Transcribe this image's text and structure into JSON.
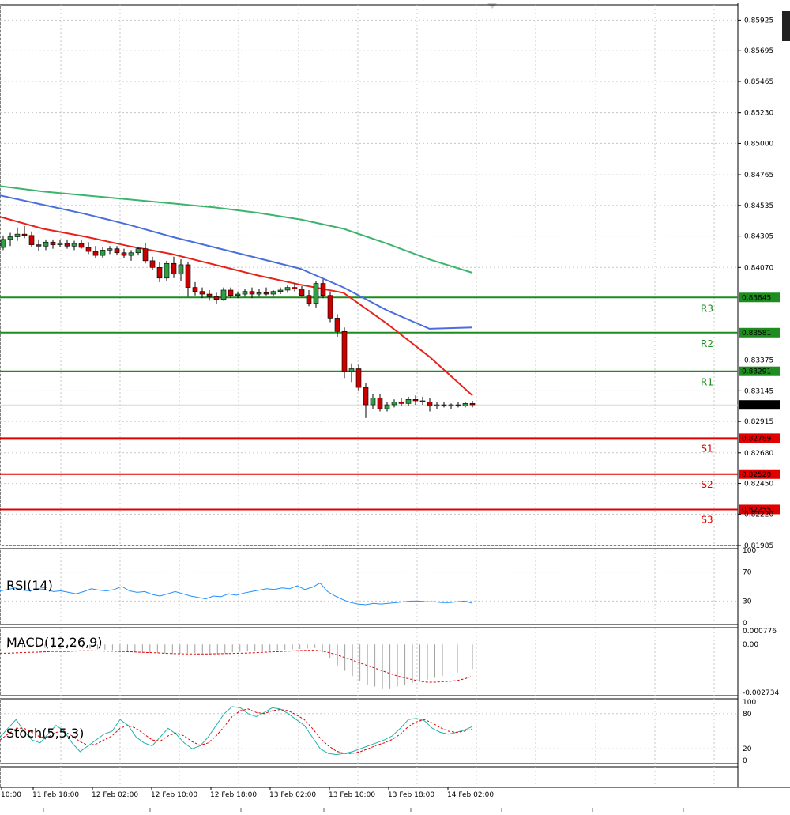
{
  "colors": {
    "background": "#ffffff",
    "grid": "#c8c8c8",
    "frame": "#000000",
    "bull": "#2f9e44",
    "bear": "#c80000",
    "resistance": "#1e8c1e",
    "support": "#e00000",
    "ma_fast": "#e8221a",
    "ma_mid": "#4a6fdc",
    "ma_slow": "#3cb46e",
    "rsi": "#1e90ff",
    "macd_hist": "#a0a0a0",
    "macd_signal": "#e00000",
    "stoch_main": "#20b2aa",
    "stoch_signal": "#e00000",
    "current_price_box": "#000000"
  },
  "chart_data": {
    "type": "candlestick",
    "x_labels": [
      "10:00",
      "11 Feb 18:00",
      "12 Feb 02:00",
      "12 Feb 10:00",
      "12 Feb 18:00",
      "13 Feb 02:00",
      "13 Feb 10:00",
      "13 Feb 18:00",
      "14 Feb 02:00"
    ],
    "price_axis": {
      "ylim": [
        0.81985,
        0.8604
      ],
      "ticks": [
        "0.85925",
        "0.85695",
        "0.85465",
        "0.85230",
        "0.85000",
        "0.84765",
        "0.84535",
        "0.84305",
        "0.84070",
        "0.83375",
        "0.83145",
        "0.82915",
        "0.82680",
        "0.82450",
        "0.82220",
        "0.81985"
      ]
    },
    "current_price": "0.83039",
    "levels": [
      {
        "name": "R3",
        "value": "0.83845",
        "kind": "resistance"
      },
      {
        "name": "R2",
        "value": "0.83581",
        "kind": "resistance"
      },
      {
        "name": "R1",
        "value": "0.83291",
        "kind": "resistance"
      },
      {
        "name": "S1",
        "value": "0.82789",
        "kind": "support"
      },
      {
        "name": "S2",
        "value": "0.82520",
        "kind": "support"
      },
      {
        "name": "S3",
        "value": "0.82255",
        "kind": "support"
      }
    ],
    "candles": [
      {
        "o": 0.8422,
        "h": 0.8431,
        "l": 0.842,
        "c": 0.8428
      },
      {
        "o": 0.8428,
        "h": 0.8433,
        "l": 0.8423,
        "c": 0.843
      },
      {
        "o": 0.843,
        "h": 0.8437,
        "l": 0.8427,
        "c": 0.8432
      },
      {
        "o": 0.8432,
        "h": 0.8438,
        "l": 0.8429,
        "c": 0.8431
      },
      {
        "o": 0.8431,
        "h": 0.8434,
        "l": 0.8422,
        "c": 0.8424
      },
      {
        "o": 0.8424,
        "h": 0.8428,
        "l": 0.8419,
        "c": 0.8423
      },
      {
        "o": 0.8423,
        "h": 0.8428,
        "l": 0.842,
        "c": 0.8426
      },
      {
        "o": 0.8426,
        "h": 0.8428,
        "l": 0.8421,
        "c": 0.8424
      },
      {
        "o": 0.8424,
        "h": 0.8428,
        "l": 0.8422,
        "c": 0.8425
      },
      {
        "o": 0.8425,
        "h": 0.8428,
        "l": 0.8421,
        "c": 0.8423
      },
      {
        "o": 0.8423,
        "h": 0.8427,
        "l": 0.842,
        "c": 0.8425
      },
      {
        "o": 0.8425,
        "h": 0.8428,
        "l": 0.8421,
        "c": 0.8422
      },
      {
        "o": 0.8422,
        "h": 0.8426,
        "l": 0.8417,
        "c": 0.8419
      },
      {
        "o": 0.8419,
        "h": 0.8423,
        "l": 0.8414,
        "c": 0.8416
      },
      {
        "o": 0.8416,
        "h": 0.8422,
        "l": 0.8414,
        "c": 0.842
      },
      {
        "o": 0.842,
        "h": 0.8423,
        "l": 0.8417,
        "c": 0.8421
      },
      {
        "o": 0.8421,
        "h": 0.8423,
        "l": 0.8416,
        "c": 0.8418
      },
      {
        "o": 0.8418,
        "h": 0.8421,
        "l": 0.8414,
        "c": 0.8416
      },
      {
        "o": 0.8416,
        "h": 0.842,
        "l": 0.8412,
        "c": 0.8418
      },
      {
        "o": 0.8418,
        "h": 0.8422,
        "l": 0.8416,
        "c": 0.8421
      },
      {
        "o": 0.8421,
        "h": 0.8425,
        "l": 0.841,
        "c": 0.8412
      },
      {
        "o": 0.8412,
        "h": 0.8415,
        "l": 0.8405,
        "c": 0.8407
      },
      {
        "o": 0.8407,
        "h": 0.8411,
        "l": 0.8396,
        "c": 0.8399
      },
      {
        "o": 0.8399,
        "h": 0.8412,
        "l": 0.8397,
        "c": 0.841
      },
      {
        "o": 0.841,
        "h": 0.8415,
        "l": 0.8399,
        "c": 0.8402
      },
      {
        "o": 0.8402,
        "h": 0.8413,
        "l": 0.8397,
        "c": 0.8409
      },
      {
        "o": 0.8409,
        "h": 0.8411,
        "l": 0.8385,
        "c": 0.8392
      },
      {
        "o": 0.8392,
        "h": 0.8396,
        "l": 0.8386,
        "c": 0.8389
      },
      {
        "o": 0.8389,
        "h": 0.8392,
        "l": 0.8384,
        "c": 0.8387
      },
      {
        "o": 0.8387,
        "h": 0.839,
        "l": 0.8382,
        "c": 0.8385
      },
      {
        "o": 0.8385,
        "h": 0.8388,
        "l": 0.838,
        "c": 0.8383
      },
      {
        "o": 0.8383,
        "h": 0.8392,
        "l": 0.8382,
        "c": 0.839
      },
      {
        "o": 0.839,
        "h": 0.8392,
        "l": 0.8384,
        "c": 0.8386
      },
      {
        "o": 0.8386,
        "h": 0.8389,
        "l": 0.8384,
        "c": 0.8387
      },
      {
        "o": 0.8387,
        "h": 0.8391,
        "l": 0.8385,
        "c": 0.8389
      },
      {
        "o": 0.8389,
        "h": 0.8392,
        "l": 0.8384,
        "c": 0.8387
      },
      {
        "o": 0.8387,
        "h": 0.8391,
        "l": 0.8385,
        "c": 0.8388
      },
      {
        "o": 0.8388,
        "h": 0.8392,
        "l": 0.8386,
        "c": 0.8387
      },
      {
        "o": 0.8387,
        "h": 0.839,
        "l": 0.8385,
        "c": 0.8389
      },
      {
        "o": 0.8389,
        "h": 0.8392,
        "l": 0.8387,
        "c": 0.839
      },
      {
        "o": 0.839,
        "h": 0.8394,
        "l": 0.8388,
        "c": 0.8392
      },
      {
        "o": 0.8392,
        "h": 0.8395,
        "l": 0.8389,
        "c": 0.8391
      },
      {
        "o": 0.8391,
        "h": 0.8393,
        "l": 0.8385,
        "c": 0.8386
      },
      {
        "o": 0.8386,
        "h": 0.839,
        "l": 0.8378,
        "c": 0.838
      },
      {
        "o": 0.838,
        "h": 0.8397,
        "l": 0.8377,
        "c": 0.8395
      },
      {
        "o": 0.8395,
        "h": 0.8398,
        "l": 0.8384,
        "c": 0.8386
      },
      {
        "o": 0.8386,
        "h": 0.8389,
        "l": 0.8366,
        "c": 0.8369
      },
      {
        "o": 0.8369,
        "h": 0.8372,
        "l": 0.8355,
        "c": 0.8359
      },
      {
        "o": 0.8359,
        "h": 0.8362,
        "l": 0.8324,
        "c": 0.8329
      },
      {
        "o": 0.8329,
        "h": 0.8335,
        "l": 0.8321,
        "c": 0.8331
      },
      {
        "o": 0.8331,
        "h": 0.8334,
        "l": 0.8314,
        "c": 0.8317
      },
      {
        "o": 0.8317,
        "h": 0.832,
        "l": 0.8294,
        "c": 0.8304
      },
      {
        "o": 0.8304,
        "h": 0.8312,
        "l": 0.8301,
        "c": 0.8309
      },
      {
        "o": 0.8309,
        "h": 0.8312,
        "l": 0.8299,
        "c": 0.8301
      },
      {
        "o": 0.8301,
        "h": 0.8306,
        "l": 0.8299,
        "c": 0.8304
      },
      {
        "o": 0.8304,
        "h": 0.8308,
        "l": 0.8302,
        "c": 0.8306
      },
      {
        "o": 0.8306,
        "h": 0.8309,
        "l": 0.8303,
        "c": 0.8305
      },
      {
        "o": 0.8305,
        "h": 0.831,
        "l": 0.8303,
        "c": 0.8308
      },
      {
        "o": 0.8308,
        "h": 0.8311,
        "l": 0.8304,
        "c": 0.8307
      },
      {
        "o": 0.8307,
        "h": 0.831,
        "l": 0.8304,
        "c": 0.8306
      },
      {
        "o": 0.8306,
        "h": 0.8309,
        "l": 0.8299,
        "c": 0.8303
      },
      {
        "o": 0.8303,
        "h": 0.8306,
        "l": 0.8301,
        "c": 0.8304
      },
      {
        "o": 0.8304,
        "h": 0.8306,
        "l": 0.8302,
        "c": 0.8303
      },
      {
        "o": 0.8303,
        "h": 0.8305,
        "l": 0.8301,
        "c": 0.8304
      },
      {
        "o": 0.8304,
        "h": 0.8306,
        "l": 0.8302,
        "c": 0.8303
      },
      {
        "o": 0.8303,
        "h": 0.8306,
        "l": 0.8302,
        "c": 0.8305
      },
      {
        "o": 0.8305,
        "h": 0.8307,
        "l": 0.8302,
        "c": 0.8304
      }
    ],
    "moving_averages": [
      {
        "color_key": "ma_slow",
        "values": [
          0.8468,
          0.8464,
          0.8461,
          0.8458,
          0.8455,
          0.8452,
          0.8448,
          0.8443,
          0.8436,
          0.8425,
          0.8413,
          0.8403
        ]
      },
      {
        "color_key": "ma_mid",
        "values": [
          0.8461,
          0.8454,
          0.8447,
          0.8439,
          0.843,
          0.8422,
          0.8414,
          0.8406,
          0.8392,
          0.8375,
          0.8361,
          0.8362
        ]
      },
      {
        "color_key": "ma_fast",
        "values": [
          0.8445,
          0.8436,
          0.843,
          0.8423,
          0.8417,
          0.8409,
          0.8401,
          0.8394,
          0.8388,
          0.8365,
          0.834,
          0.8311
        ]
      }
    ],
    "rsi": {
      "title": "RSI(14)",
      "ticks": [
        "100",
        "70",
        "30",
        "0"
      ],
      "ylim": [
        0,
        100
      ],
      "levels": [
        70,
        30
      ],
      "values": [
        44,
        46,
        48,
        45,
        44,
        47,
        46,
        43,
        44,
        42,
        40,
        43,
        47,
        45,
        44,
        46,
        50,
        44,
        42,
        43,
        39,
        37,
        40,
        43,
        40,
        37,
        35,
        33,
        37,
        36,
        40,
        38,
        41,
        43,
        45,
        47,
        46,
        48,
        47,
        51,
        46,
        49,
        55,
        43,
        37,
        32,
        28,
        26,
        25,
        27,
        26,
        27,
        28,
        29,
        30,
        30,
        29,
        29,
        28,
        28,
        29,
        30,
        27
      ]
    },
    "macd": {
      "title": "MACD(12,26,9)",
      "ticks": [
        "0.000776",
        "0.00",
        "-0.002734"
      ],
      "ylim": [
        -0.002734,
        0.000776
      ],
      "hist": [
        -0.00025,
        -0.00022,
        -0.0002,
        -0.00018,
        -0.00015,
        -0.00018,
        -0.0002,
        -0.00022,
        -0.00025,
        -0.00023,
        -0.0002,
        -0.00022,
        -0.00025,
        -0.00028,
        -0.0003,
        -0.00032,
        -0.00035,
        -0.0004,
        -0.00042,
        -0.00045,
        -0.00048,
        -0.0005,
        -0.00052,
        -0.00055,
        -0.00052,
        -0.0005,
        -0.00048,
        -0.0005,
        -0.00052,
        -0.0005,
        -0.00048,
        -0.00045,
        -0.00042,
        -0.0004,
        -0.00038,
        -0.00036,
        -0.00034,
        -0.00032,
        -0.0003,
        -0.00028,
        -0.00026,
        -0.00024,
        -0.0002,
        -0.00045,
        -0.0008,
        -0.0012,
        -0.0015,
        -0.0018,
        -0.0021,
        -0.0023,
        -0.0024,
        -0.0025,
        -0.0025,
        -0.0024,
        -0.0023,
        -0.0022,
        -0.0021,
        -0.002,
        -0.0019,
        -0.0018,
        -0.0017,
        -0.0016,
        -0.0015,
        -0.0014
      ],
      "signal": [
        -0.0005,
        -0.0005,
        -0.00048,
        -0.00046,
        -0.00045,
        -0.00044,
        -0.00042,
        -0.0004,
        -0.0004,
        -0.0004,
        -0.00038,
        -0.00036,
        -0.00036,
        -0.00037,
        -0.00038,
        -0.00039,
        -0.0004,
        -0.00041,
        -0.00043,
        -0.00045,
        -0.00046,
        -0.00048,
        -0.0005,
        -0.00052,
        -0.00053,
        -0.00054,
        -0.00054,
        -0.00054,
        -0.00054,
        -0.00053,
        -0.00052,
        -0.00051,
        -0.0005,
        -0.00049,
        -0.00047,
        -0.00045,
        -0.00043,
        -0.00041,
        -0.00039,
        -0.00037,
        -0.00035,
        -0.00034,
        -0.00033,
        -0.00038,
        -0.00048,
        -0.0006,
        -0.00075,
        -0.0009,
        -0.00105,
        -0.0012,
        -0.00135,
        -0.0015,
        -0.00165,
        -0.0018,
        -0.0019,
        -0.002,
        -0.0021,
        -0.00215,
        -0.00215,
        -0.00212,
        -0.0021,
        -0.00205,
        -0.00195,
        -0.0018
      ]
    },
    "stochastic": {
      "title": "Stoch(5,5,3)",
      "ticks": [
        "100",
        "80",
        "20",
        "0"
      ],
      "ylim": [
        0,
        100
      ],
      "levels": [
        80,
        20
      ],
      "main": [
        40,
        55,
        70,
        50,
        35,
        30,
        45,
        60,
        50,
        30,
        15,
        25,
        35,
        45,
        50,
        70,
        60,
        40,
        30,
        25,
        40,
        55,
        45,
        30,
        20,
        25,
        40,
        60,
        80,
        92,
        90,
        80,
        75,
        82,
        90,
        88,
        80,
        70,
        60,
        40,
        20,
        12,
        10,
        12,
        15,
        20,
        25,
        30,
        35,
        42,
        55,
        70,
        72,
        68,
        55,
        48,
        45,
        48,
        52,
        58
      ],
      "signal": [
        35,
        45,
        55,
        55,
        48,
        40,
        40,
        48,
        50,
        42,
        32,
        26,
        28,
        35,
        42,
        55,
        60,
        55,
        45,
        35,
        33,
        42,
        47,
        42,
        32,
        26,
        30,
        42,
        58,
        75,
        85,
        88,
        82,
        80,
        85,
        87,
        85,
        78,
        70,
        55,
        38,
        25,
        16,
        12,
        12,
        15,
        20,
        26,
        30,
        36,
        45,
        58,
        66,
        70,
        64,
        56,
        50,
        48,
        50,
        54
      ]
    }
  }
}
